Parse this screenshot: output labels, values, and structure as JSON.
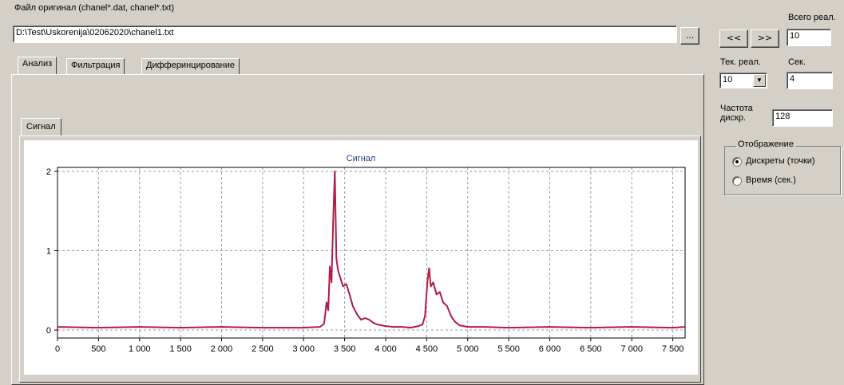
{
  "file": {
    "label": "Файл оригинал (chanel*.dat, chanel*.txt)",
    "path": "D:\\Test\\Uskorenija\\02062020\\chanel1.txt",
    "browse_label": "..."
  },
  "navigation": {
    "prev_label": "<<",
    "next_label": ">>",
    "total_label": "Всего реал.",
    "total_value": "10"
  },
  "tabs": {
    "items": [
      "Анализ",
      "Фильтрация",
      "Дифферинцирование"
    ],
    "active": "Анализ",
    "inner": [
      "Сигнал"
    ]
  },
  "settings": {
    "current_real_label": "Тек. реал.",
    "current_real_value": "10",
    "sec_label": "Сек.",
    "sec_value": "4",
    "freq_label": "Частота дискр.",
    "freq_value": "128"
  },
  "display": {
    "group_label": "Отображение",
    "options": [
      "Дискреты (точки)",
      "Время (сек.)"
    ],
    "selected": 0
  },
  "colors": {
    "signal": "#b01c44",
    "title": "#1f3c8c",
    "grid": "#9a9a9a"
  },
  "chart_data": {
    "type": "line",
    "title": "Сигнал",
    "xlabel": "",
    "ylabel": "",
    "xlim": [
      0,
      7650
    ],
    "ylim": [
      -0.1,
      2.05
    ],
    "xticks": [
      0,
      500,
      1000,
      1500,
      2000,
      2500,
      3000,
      3500,
      4000,
      4500,
      5000,
      5500,
      6000,
      6500,
      7000,
      7500
    ],
    "xtick_labels": [
      "0",
      "500",
      "1 000",
      "1 500",
      "2 000",
      "2 500",
      "3 000",
      "3 500",
      "4 000",
      "4 500",
      "5 000",
      "5 500",
      "6 000",
      "6 500",
      "7 000",
      "7 500"
    ],
    "yticks": [
      0,
      1,
      2
    ],
    "ytick_labels": [
      "0",
      "1",
      "2"
    ],
    "grid": true,
    "series": [
      {
        "x": [
          0,
          500,
          1000,
          1500,
          2000,
          2500,
          3000,
          3200,
          3250,
          3280,
          3300,
          3320,
          3340,
          3360,
          3380,
          3400,
          3420,
          3450,
          3480,
          3520,
          3560,
          3600,
          3650,
          3700,
          3750,
          3800,
          3850,
          3900,
          4000,
          4100,
          4200,
          4300,
          4400,
          4450,
          4480,
          4510,
          4530,
          4550,
          4580,
          4620,
          4660,
          4700,
          4750,
          4800,
          4850,
          4900,
          5000,
          5200,
          5500,
          6000,
          6500,
          7000,
          7500,
          7650
        ],
        "values": [
          0.04,
          0.03,
          0.04,
          0.03,
          0.04,
          0.03,
          0.03,
          0.04,
          0.08,
          0.35,
          0.25,
          0.8,
          0.6,
          1.35,
          2.0,
          0.9,
          0.75,
          0.65,
          0.55,
          0.58,
          0.45,
          0.3,
          0.2,
          0.13,
          0.15,
          0.13,
          0.09,
          0.07,
          0.05,
          0.04,
          0.04,
          0.03,
          0.05,
          0.07,
          0.18,
          0.62,
          0.78,
          0.55,
          0.6,
          0.45,
          0.48,
          0.35,
          0.3,
          0.17,
          0.1,
          0.06,
          0.04,
          0.04,
          0.03,
          0.04,
          0.03,
          0.04,
          0.03,
          0.04
        ]
      }
    ]
  }
}
